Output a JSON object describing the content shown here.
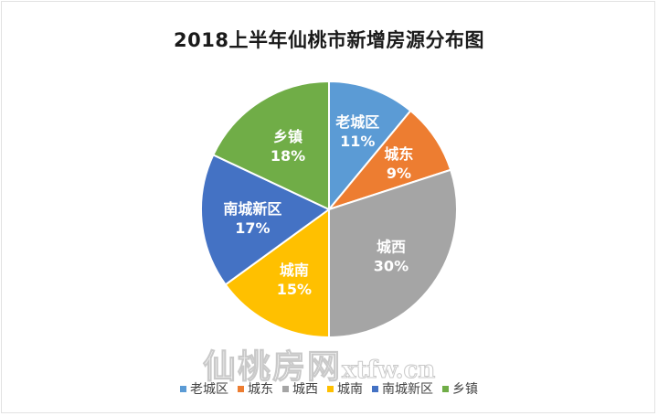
{
  "chart_data": {
    "type": "pie",
    "title": "2018上半年仙桃市新增房源分布图",
    "categories": [
      "老城区",
      "城东",
      "城西",
      "城南",
      "南城新区",
      "乡镇"
    ],
    "values": [
      11,
      9,
      30,
      15,
      17,
      18
    ],
    "labels": [
      "11%",
      "9%",
      "30%",
      "15%",
      "17%",
      "18%"
    ],
    "colors": [
      "#5b9bd5",
      "#ed7d31",
      "#a5a5a5",
      "#ffc000",
      "#4472c4",
      "#70ad47"
    ],
    "start_angle_deg": 0,
    "direction": "clockwise",
    "legend_position": "bottom",
    "data_labels": "category + percentage, inside"
  },
  "title": "2018上半年仙桃市新增房源分布图",
  "legend": [
    {
      "label": "老城区",
      "color": "#5b9bd5"
    },
    {
      "label": "城东",
      "color": "#ed7d31"
    },
    {
      "label": "城西",
      "color": "#a5a5a5"
    },
    {
      "label": "城南",
      "color": "#ffc000"
    },
    {
      "label": "南城新区",
      "color": "#4472c4"
    },
    {
      "label": "乡镇",
      "color": "#70ad47"
    }
  ],
  "watermark": {
    "cn": "仙桃房网",
    "domain": "xtfw.cn"
  }
}
